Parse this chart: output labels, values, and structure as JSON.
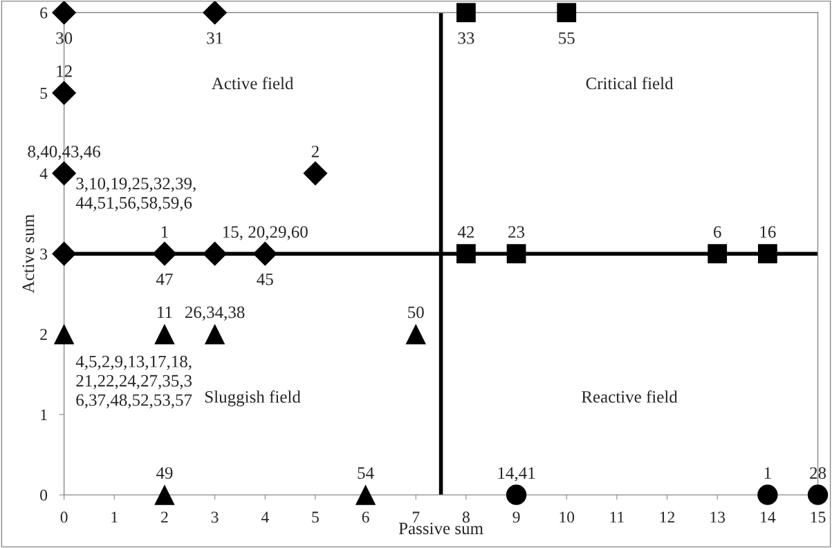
{
  "chart_data": {
    "type": "scatter",
    "xlabel": "Passive sum",
    "ylabel": "Active sum",
    "xlim": [
      0,
      15
    ],
    "ylim": [
      0,
      6
    ],
    "xticks": [
      0,
      1,
      2,
      3,
      4,
      5,
      6,
      7,
      8,
      9,
      10,
      11,
      12,
      13,
      14,
      15
    ],
    "yticks": [
      0,
      1,
      2,
      3,
      4,
      5,
      6
    ],
    "grid": false,
    "legend": false,
    "series": [
      {
        "color": "#000000",
        "marker": "diamond",
        "x": [
          0,
          3,
          0,
          0,
          5,
          0,
          2,
          3,
          4
        ],
        "values": [
          6,
          6,
          5,
          4,
          4,
          3,
          3,
          3,
          3
        ]
      },
      {
        "color": "#000000",
        "marker": "square",
        "x": [
          8,
          10,
          8,
          9,
          13,
          14
        ],
        "values": [
          6,
          6,
          3,
          3,
          3,
          3
        ]
      },
      {
        "color": "#000000",
        "marker": "triangle",
        "x": [
          0,
          2,
          3,
          7,
          2,
          6
        ],
        "values": [
          2,
          2,
          2,
          2,
          0,
          0
        ]
      },
      {
        "color": "#000000",
        "marker": "circle",
        "x": [
          9,
          14,
          15
        ],
        "values": [
          0,
          0,
          0
        ]
      }
    ],
    "ref_lines": [
      {
        "axis": "x",
        "value": 7.5,
        "color": "#000000"
      },
      {
        "axis": "y",
        "value": 3,
        "color": "#000000"
      }
    ],
    "annotations": [
      {
        "text": "30",
        "x": 0,
        "y": 6
      },
      {
        "text": "31",
        "x": 3,
        "y": 6
      },
      {
        "text": "33",
        "x": 8,
        "y": 6
      },
      {
        "text": "55",
        "x": 10,
        "y": 6
      },
      {
        "text": "12",
        "x": 0,
        "y": 5
      },
      {
        "text": "8,40,43,46",
        "x": 0,
        "y": 4
      },
      {
        "text": "3,10,19,25,32,39,\n44,51,56,58,59,6",
        "x": 0,
        "y": 4
      },
      {
        "text": "2",
        "x": 5,
        "y": 4
      },
      {
        "text": "15, 20,29,60",
        "x": 4,
        "y": 3
      },
      {
        "text": "42",
        "x": 8,
        "y": 3
      },
      {
        "text": "23",
        "x": 9,
        "y": 3
      },
      {
        "text": "6",
        "x": 13,
        "y": 3
      },
      {
        "text": "16",
        "x": 14,
        "y": 3
      },
      {
        "text": "1",
        "x": 2,
        "y": 3
      },
      {
        "text": "47",
        "x": 2,
        "y": 3
      },
      {
        "text": "45",
        "x": 4,
        "y": 3
      },
      {
        "text": "11",
        "x": 2,
        "y": 2
      },
      {
        "text": "26,34,38",
        "x": 3,
        "y": 2
      },
      {
        "text": "50",
        "x": 7,
        "y": 2
      },
      {
        "text": "4,5,2,9,13,17,18,\n21,22,24,27,35,3\n6,37,48,52,53,57",
        "x": 0,
        "y": 2
      },
      {
        "text": "49",
        "x": 2,
        "y": 0
      },
      {
        "text": "54",
        "x": 6,
        "y": 0
      },
      {
        "text": "14,41",
        "x": 9,
        "y": 0
      },
      {
        "text": "1",
        "x": 14,
        "y": 0
      },
      {
        "text": "28",
        "x": 15,
        "y": 0
      },
      "Active field",
      "Critical field",
      "Sluggish field",
      "Reactive field"
    ]
  }
}
